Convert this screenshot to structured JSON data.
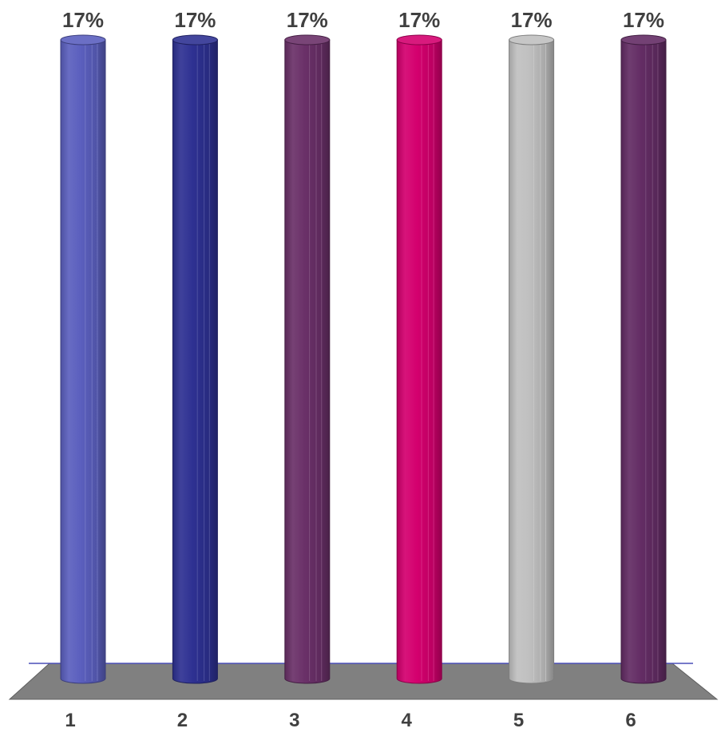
{
  "chart_data": {
    "type": "bar",
    "style": "3d-cylinder",
    "categories": [
      "1",
      "2",
      "3",
      "4",
      "5",
      "6"
    ],
    "values": [
      17,
      17,
      17,
      17,
      17,
      17
    ],
    "data_labels": [
      "17%",
      "17%",
      "17%",
      "17%",
      "17%",
      "17%"
    ],
    "bar_colors": [
      "#5b5fbe",
      "#2e3192",
      "#6a3068",
      "#d4006e",
      "#c0c0c0",
      "#632c64"
    ],
    "floor_color": "#808080",
    "axis_line_color": "#4a4fb8",
    "title": "",
    "xlabel": "",
    "ylabel": "",
    "ylim": [
      0,
      17
    ],
    "grid": false,
    "legend": "none"
  }
}
